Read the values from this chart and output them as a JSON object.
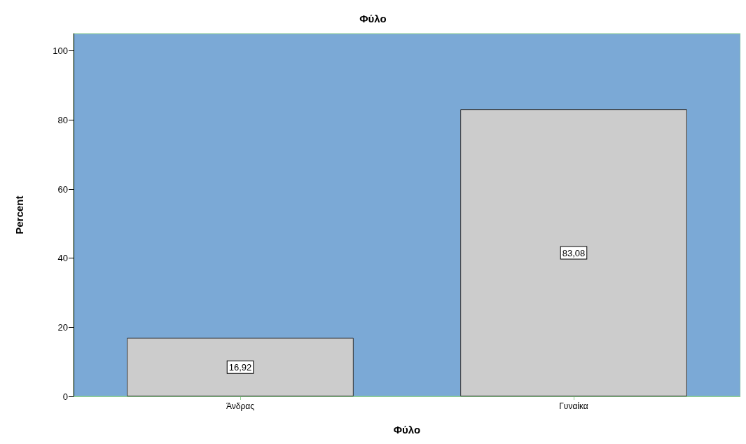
{
  "chart_data": {
    "type": "bar",
    "title": "Φύλο",
    "xlabel": "Φύλο",
    "ylabel": "Percent",
    "categories": [
      "Άνδρας",
      "Γυναίκα"
    ],
    "values": [
      16.92,
      83.08
    ],
    "value_labels": [
      "16,92",
      "83,08"
    ],
    "color": "#cccccc",
    "ylim": [
      0,
      105
    ],
    "yticks": [
      0,
      20,
      40,
      60,
      80,
      100
    ],
    "grid": false
  }
}
